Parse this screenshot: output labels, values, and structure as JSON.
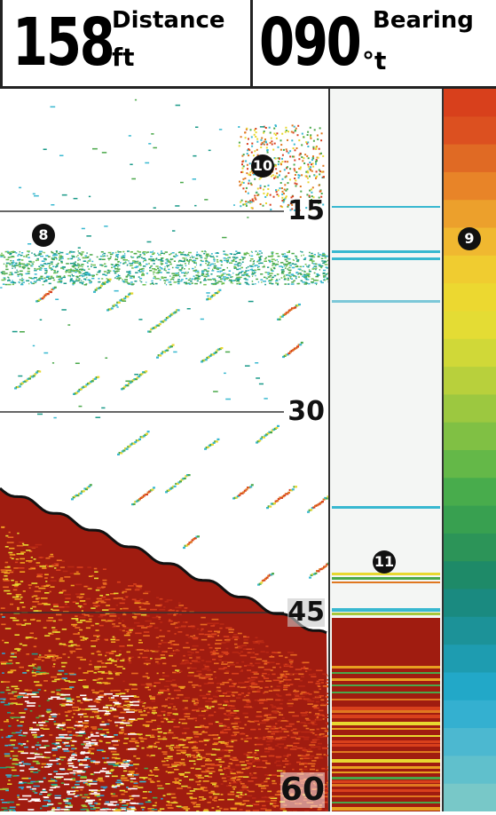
{
  "header": {
    "distance": {
      "value": "158",
      "label": "Distance",
      "unit": "ft"
    },
    "bearing": {
      "value": "090",
      "label": "Bearing",
      "unit": "°t"
    }
  },
  "depth_scale": [
    "15",
    "30",
    "45",
    "60"
  ],
  "callouts": [
    "8",
    "9",
    "10",
    "11"
  ],
  "colors": {
    "bottom": "#a01c10",
    "fish_cyan": "#38b8d0",
    "fish_green": "#4aa84a",
    "fish_orange": "#e07820",
    "scale_top": "#d8401c",
    "scale_mid": "#e8d830",
    "scale_low": "#2fa0d0"
  }
}
